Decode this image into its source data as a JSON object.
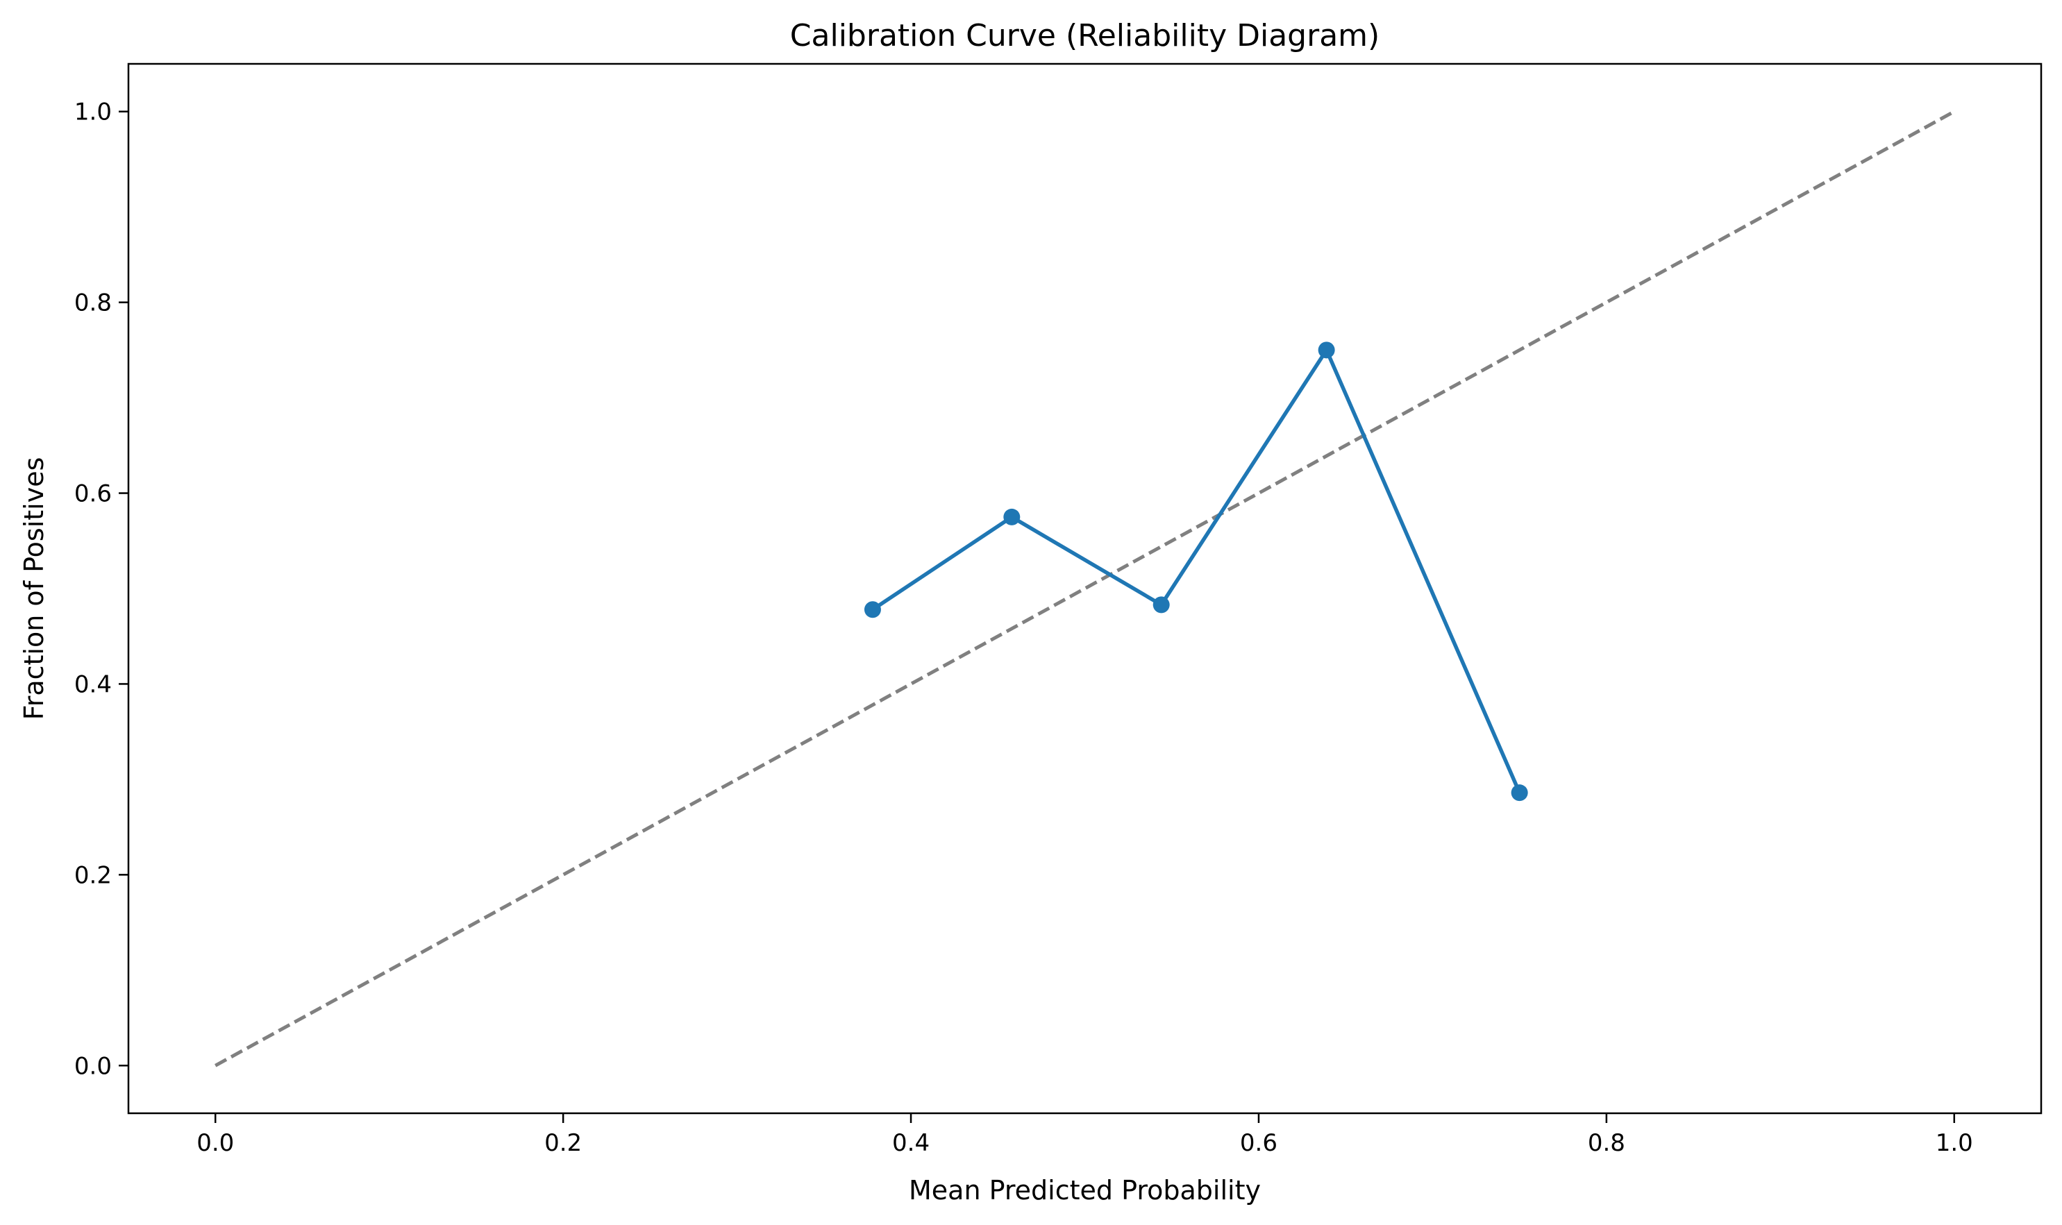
{
  "chart_data": {
    "type": "line",
    "title": "Calibration Curve (Reliability Diagram)",
    "xlabel": "Mean Predicted Probability",
    "ylabel": "Fraction of Positives",
    "xlim": [
      -0.05,
      1.05
    ],
    "ylim": [
      -0.05,
      1.05
    ],
    "x_ticks": [
      0.0,
      0.2,
      0.4,
      0.6,
      0.8,
      1.0
    ],
    "x_tick_labels": [
      "0.0",
      "0.2",
      "0.4",
      "0.6",
      "0.8",
      "1.0"
    ],
    "y_ticks": [
      0.0,
      0.2,
      0.4,
      0.6,
      0.8,
      1.0
    ],
    "y_tick_labels": [
      "0.0",
      "0.2",
      "0.4",
      "0.6",
      "0.8",
      "1.0"
    ],
    "grid": false,
    "legend": "none",
    "series": [
      {
        "style": "dashed",
        "color": "#808080",
        "x": [
          0.0,
          1.0
        ],
        "y": [
          0.0,
          1.0
        ]
      },
      {
        "style": "solid-with-markers",
        "color": "#1f77b4",
        "x": [
          0.378,
          0.458,
          0.544,
          0.639,
          0.75
        ],
        "y": [
          0.478,
          0.575,
          0.483,
          0.75,
          0.286
        ]
      }
    ]
  }
}
